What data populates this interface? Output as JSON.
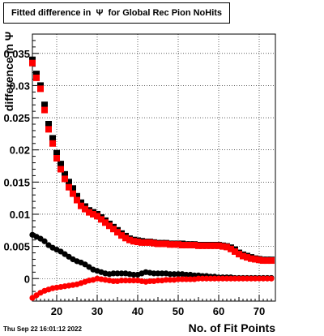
{
  "title": "Fitted difference in  Ψ  for Global Rec Pion NoHits",
  "datestamp": "Thu Sep 22 16:01:12 2022",
  "chart_data": {
    "type": "scatter",
    "title": "Fitted difference in Ψ for Global Rec Pion NoHits",
    "xlabel": "No. of Fit Points",
    "ylabel": "difference in Ψ",
    "xlim": [
      14,
      74
    ],
    "ylim": [
      -0.0035,
      0.038
    ],
    "grid": true,
    "x_ticks": [
      20,
      30,
      40,
      50,
      60,
      70
    ],
    "y_ticks": [
      0,
      0.005,
      0.01,
      0.015,
      0.02,
      0.025,
      0.03,
      0.035
    ],
    "y_tick_labels": [
      "0",
      "0.005",
      "0.01",
      "0.015",
      "0.02",
      "0.025",
      "0.03",
      "0.035"
    ],
    "colors": {
      "black": "#000000",
      "red": "#ff0000"
    },
    "x": [
      14,
      15,
      16,
      17,
      18,
      19,
      20,
      21,
      22,
      23,
      24,
      25,
      26,
      27,
      28,
      29,
      30,
      31,
      32,
      33,
      34,
      35,
      36,
      37,
      38,
      39,
      40,
      41,
      42,
      43,
      44,
      45,
      46,
      47,
      48,
      49,
      50,
      51,
      52,
      53,
      54,
      55,
      56,
      57,
      58,
      59,
      60,
      61,
      62,
      63,
      64,
      65,
      66,
      67,
      68,
      69,
      70,
      71,
      72,
      73
    ],
    "series": [
      {
        "marker": "square",
        "color": "#000000",
        "values": [
          0.034,
          0.0318,
          0.03,
          0.027,
          0.024,
          0.0218,
          0.0195,
          0.0178,
          0.0162,
          0.015,
          0.014,
          0.0128,
          0.0118,
          0.0112,
          0.0106,
          0.0103,
          0.01,
          0.0095,
          0.009,
          0.0085,
          0.008,
          0.0075,
          0.007,
          0.0066,
          0.0062,
          0.006,
          0.0059,
          0.0058,
          0.0057,
          0.0057,
          0.0056,
          0.0055,
          0.0055,
          0.0055,
          0.0054,
          0.0054,
          0.0054,
          0.0054,
          0.0053,
          0.0053,
          0.0053,
          0.0052,
          0.0052,
          0.0052,
          0.0052,
          0.0052,
          0.0052,
          0.0051,
          0.005,
          0.0048,
          0.0045,
          0.004,
          0.0037,
          0.0035,
          0.0033,
          0.0031,
          0.003,
          0.0029,
          0.0029,
          0.0029
        ]
      },
      {
        "marker": "square",
        "color": "#ff0000",
        "values": [
          0.0335,
          0.0312,
          0.0295,
          0.0262,
          0.0232,
          0.021,
          0.0187,
          0.017,
          0.0155,
          0.0142,
          0.0132,
          0.0122,
          0.0113,
          0.0108,
          0.0103,
          0.01,
          0.0097,
          0.0092,
          0.0087,
          0.0082,
          0.0077,
          0.0072,
          0.0067,
          0.0063,
          0.006,
          0.0058,
          0.0057,
          0.0056,
          0.0056,
          0.0056,
          0.0055,
          0.0054,
          0.0054,
          0.0054,
          0.0053,
          0.0053,
          0.0053,
          0.0052,
          0.0052,
          0.0052,
          0.0052,
          0.0051,
          0.0051,
          0.0051,
          0.0051,
          0.0051,
          0.0051,
          0.005,
          0.0049,
          0.0046,
          0.0042,
          0.0038,
          0.0035,
          0.0033,
          0.0031,
          0.003,
          0.0029,
          0.0028,
          0.0028,
          0.0028
        ]
      },
      {
        "marker": "circle",
        "color": "#000000",
        "values": [
          0.0068,
          0.0065,
          0.0062,
          0.0058,
          0.0052,
          0.0048,
          0.0045,
          0.0042,
          0.0038,
          0.0034,
          0.003,
          0.0027,
          0.0025,
          0.0022,
          0.0018,
          0.0014,
          0.0012,
          0.001,
          0.0008,
          0.0007,
          0.0008,
          0.0008,
          0.0008,
          0.0008,
          0.0007,
          0.0006,
          0.0006,
          0.0008,
          0.001,
          0.0009,
          0.0008,
          0.0008,
          0.0008,
          0.0008,
          0.0007,
          0.0007,
          0.0007,
          0.0007,
          0.0006,
          0.0006,
          0.0005,
          0.0005,
          0.0004,
          0.0004,
          0.0003,
          0.0003,
          0.0002,
          0.0002,
          0.0002,
          0.0002,
          0.0001,
          0.0001,
          0.0001,
          0.0001,
          0.0001,
          0.0001,
          0.0001,
          0.0001,
          0.0001,
          0.0001
        ]
      },
      {
        "marker": "circle",
        "color": "#ff0000",
        "values": [
          -0.003,
          -0.0026,
          -0.0022,
          -0.0019,
          -0.0017,
          -0.0015,
          -0.0014,
          -0.0013,
          -0.0012,
          -0.0011,
          -0.001,
          -0.0009,
          -0.0007,
          -0.0005,
          -0.0003,
          -0.0002,
          0.0,
          -0.0001,
          -0.0002,
          -0.0003,
          -0.0004,
          -0.0004,
          -0.0003,
          -0.0003,
          -0.0003,
          -0.0003,
          -0.0003,
          -0.0004,
          -0.0005,
          -0.0004,
          -0.0004,
          -0.0003,
          -0.0003,
          -0.0002,
          -0.0002,
          -0.0002,
          -0.0001,
          -0.0001,
          -0.0001,
          -0.0001,
          -0.0001,
          0.0,
          0.0,
          0.0,
          0.0,
          0.0,
          0.0,
          0.0,
          0.0,
          0.0,
          0.0,
          0.0,
          0.0,
          0.0,
          0.0,
          0.0,
          0.0,
          0.0,
          0.0,
          0.0
        ]
      }
    ]
  }
}
